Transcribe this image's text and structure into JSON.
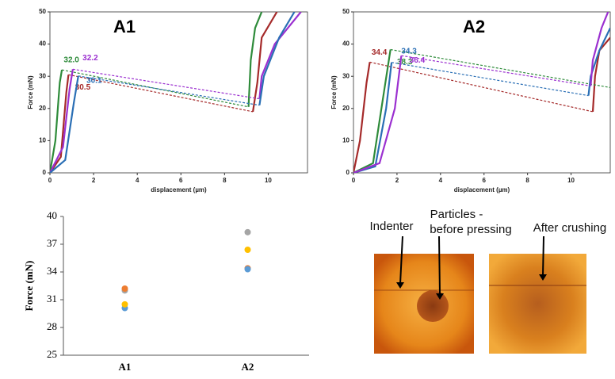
{
  "chart_data": [
    {
      "type": "line",
      "title": "A1",
      "xlabel": "displacement (µm)",
      "ylabel": "Force (mN)",
      "xlim": [
        0,
        11.8
      ],
      "xticks": [
        0,
        2,
        4,
        6,
        8,
        10
      ],
      "ylim": [
        0,
        50
      ],
      "yticks": [
        0,
        10,
        20,
        30,
        40,
        50
      ],
      "series": [
        {
          "name": "32.0",
          "color": "#2e8b3a",
          "x": [
            0,
            0.25,
            0.45,
            0.55,
            9.1,
            9.2,
            9.4,
            9.7
          ],
          "y": [
            0,
            10,
            28,
            32.0,
            20.5,
            35,
            45,
            50
          ]
        },
        {
          "name": "30.5",
          "color": "#a52a2a",
          "x": [
            0,
            0.5,
            0.75,
            0.85,
            9.3,
            9.5,
            9.7,
            10.4
          ],
          "y": [
            0,
            5,
            25,
            30.5,
            19,
            28,
            42,
            50
          ]
        },
        {
          "name": "32.2",
          "color": "#9b30d0",
          "x": [
            0,
            0.6,
            0.9,
            1.05,
            9.6,
            9.7,
            10.3,
            11.5
          ],
          "y": [
            0,
            8,
            26,
            32.2,
            23,
            30,
            40,
            50
          ]
        },
        {
          "name": "30.1",
          "color": "#2a6fb5",
          "x": [
            0,
            0.7,
            1.1,
            1.3,
            9.6,
            9.8,
            10.5,
            11.2
          ],
          "y": [
            0,
            4,
            22,
            30.1,
            21,
            30,
            42,
            50
          ]
        }
      ]
    },
    {
      "type": "line",
      "title": "A2",
      "xlabel": "displacement (µm)",
      "ylabel": "Force (mN)",
      "xlim": [
        0,
        11.8
      ],
      "xticks": [
        0,
        2,
        4,
        6,
        8,
        10
      ],
      "ylim": [
        0,
        50
      ],
      "yticks": [
        0,
        10,
        20,
        30,
        40,
        50
      ],
      "series": [
        {
          "name": "34.4",
          "color": "#a52a2a",
          "x": [
            0,
            0.3,
            0.6,
            0.75,
            11.0,
            11.1,
            11.3,
            11.8
          ],
          "y": [
            0,
            10,
            28,
            34.4,
            19,
            30,
            38,
            42
          ]
        },
        {
          "name": "38.3",
          "color": "#2e8b3a",
          "x": [
            0,
            0.9,
            1.4,
            1.7,
            11.8
          ],
          "y": [
            0,
            3,
            25,
            38.3,
            26.5
          ]
        },
        {
          "name": "34.3",
          "color": "#2a6fb5",
          "x": [
            0,
            1.0,
            1.5,
            1.75,
            10.8,
            10.9,
            11.3,
            11.8
          ],
          "y": [
            0,
            2,
            20,
            34.3,
            24,
            30,
            38,
            45
          ]
        },
        {
          "name": "36.4",
          "color": "#9b30d0",
          "x": [
            0,
            1.2,
            1.9,
            2.2,
            10.9,
            11.0,
            11.4,
            11.7
          ],
          "y": [
            0,
            3,
            20,
            36.4,
            27,
            35,
            45,
            50
          ]
        }
      ]
    },
    {
      "type": "scatter",
      "ylabel": "Force (mN)",
      "categories": [
        "A1",
        "A2"
      ],
      "ylim": [
        25,
        40
      ],
      "yticks": [
        25,
        28,
        31,
        34,
        37,
        40
      ],
      "series": [
        {
          "color": "#a5a5a5",
          "values": [
            32.0,
            38.3
          ]
        },
        {
          "color": "#ed7d31",
          "values": [
            32.2,
            34.4
          ]
        },
        {
          "color": "#5b9bd5",
          "values": [
            30.1,
            34.3
          ]
        },
        {
          "color": "#ffc000",
          "values": [
            30.5,
            36.4
          ]
        }
      ]
    }
  ],
  "images": {
    "labels": [
      "Indenter",
      "Particles -",
      "before pressing",
      "After crushing"
    ]
  }
}
